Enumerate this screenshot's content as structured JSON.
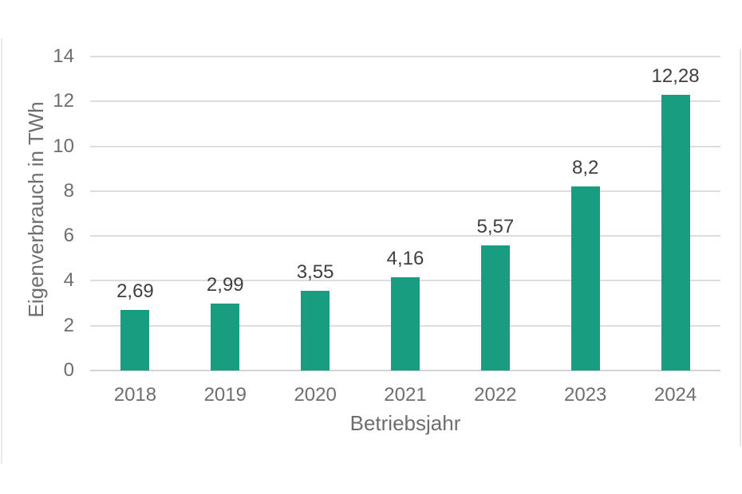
{
  "page": {
    "background_color": "#ffffff"
  },
  "decorations": {
    "left_edge_line_color": "#e9e9e9",
    "right_edge_line_color": "#e4e4e4"
  },
  "chart_data": {
    "type": "bar",
    "title": "",
    "categories": [
      "2018",
      "2019",
      "2020",
      "2021",
      "2022",
      "2023",
      "2024"
    ],
    "values": [
      2.69,
      2.99,
      3.55,
      4.16,
      5.57,
      8.2,
      12.28
    ],
    "value_labels": [
      "2,69",
      "2,99",
      "3,55",
      "4,16",
      "5,57",
      "8,2",
      "12,28"
    ],
    "xlabel": "Betriebsjahr",
    "ylabel": "Eigenverbrauch in TWh",
    "ylim": [
      0,
      14
    ],
    "yticks": [
      0,
      2,
      4,
      6,
      8,
      10,
      12,
      14
    ],
    "ytick_labels": [
      "0",
      "2",
      "4",
      "6",
      "8",
      "10",
      "12",
      "14"
    ],
    "grid": true,
    "legend": "none",
    "bar_color": "#189d81",
    "gridline_color": "#dddddd",
    "baseline_color": "#d2d2d2",
    "axis_text_color": "#6e6e6e",
    "value_label_color": "#3f3f3f"
  }
}
